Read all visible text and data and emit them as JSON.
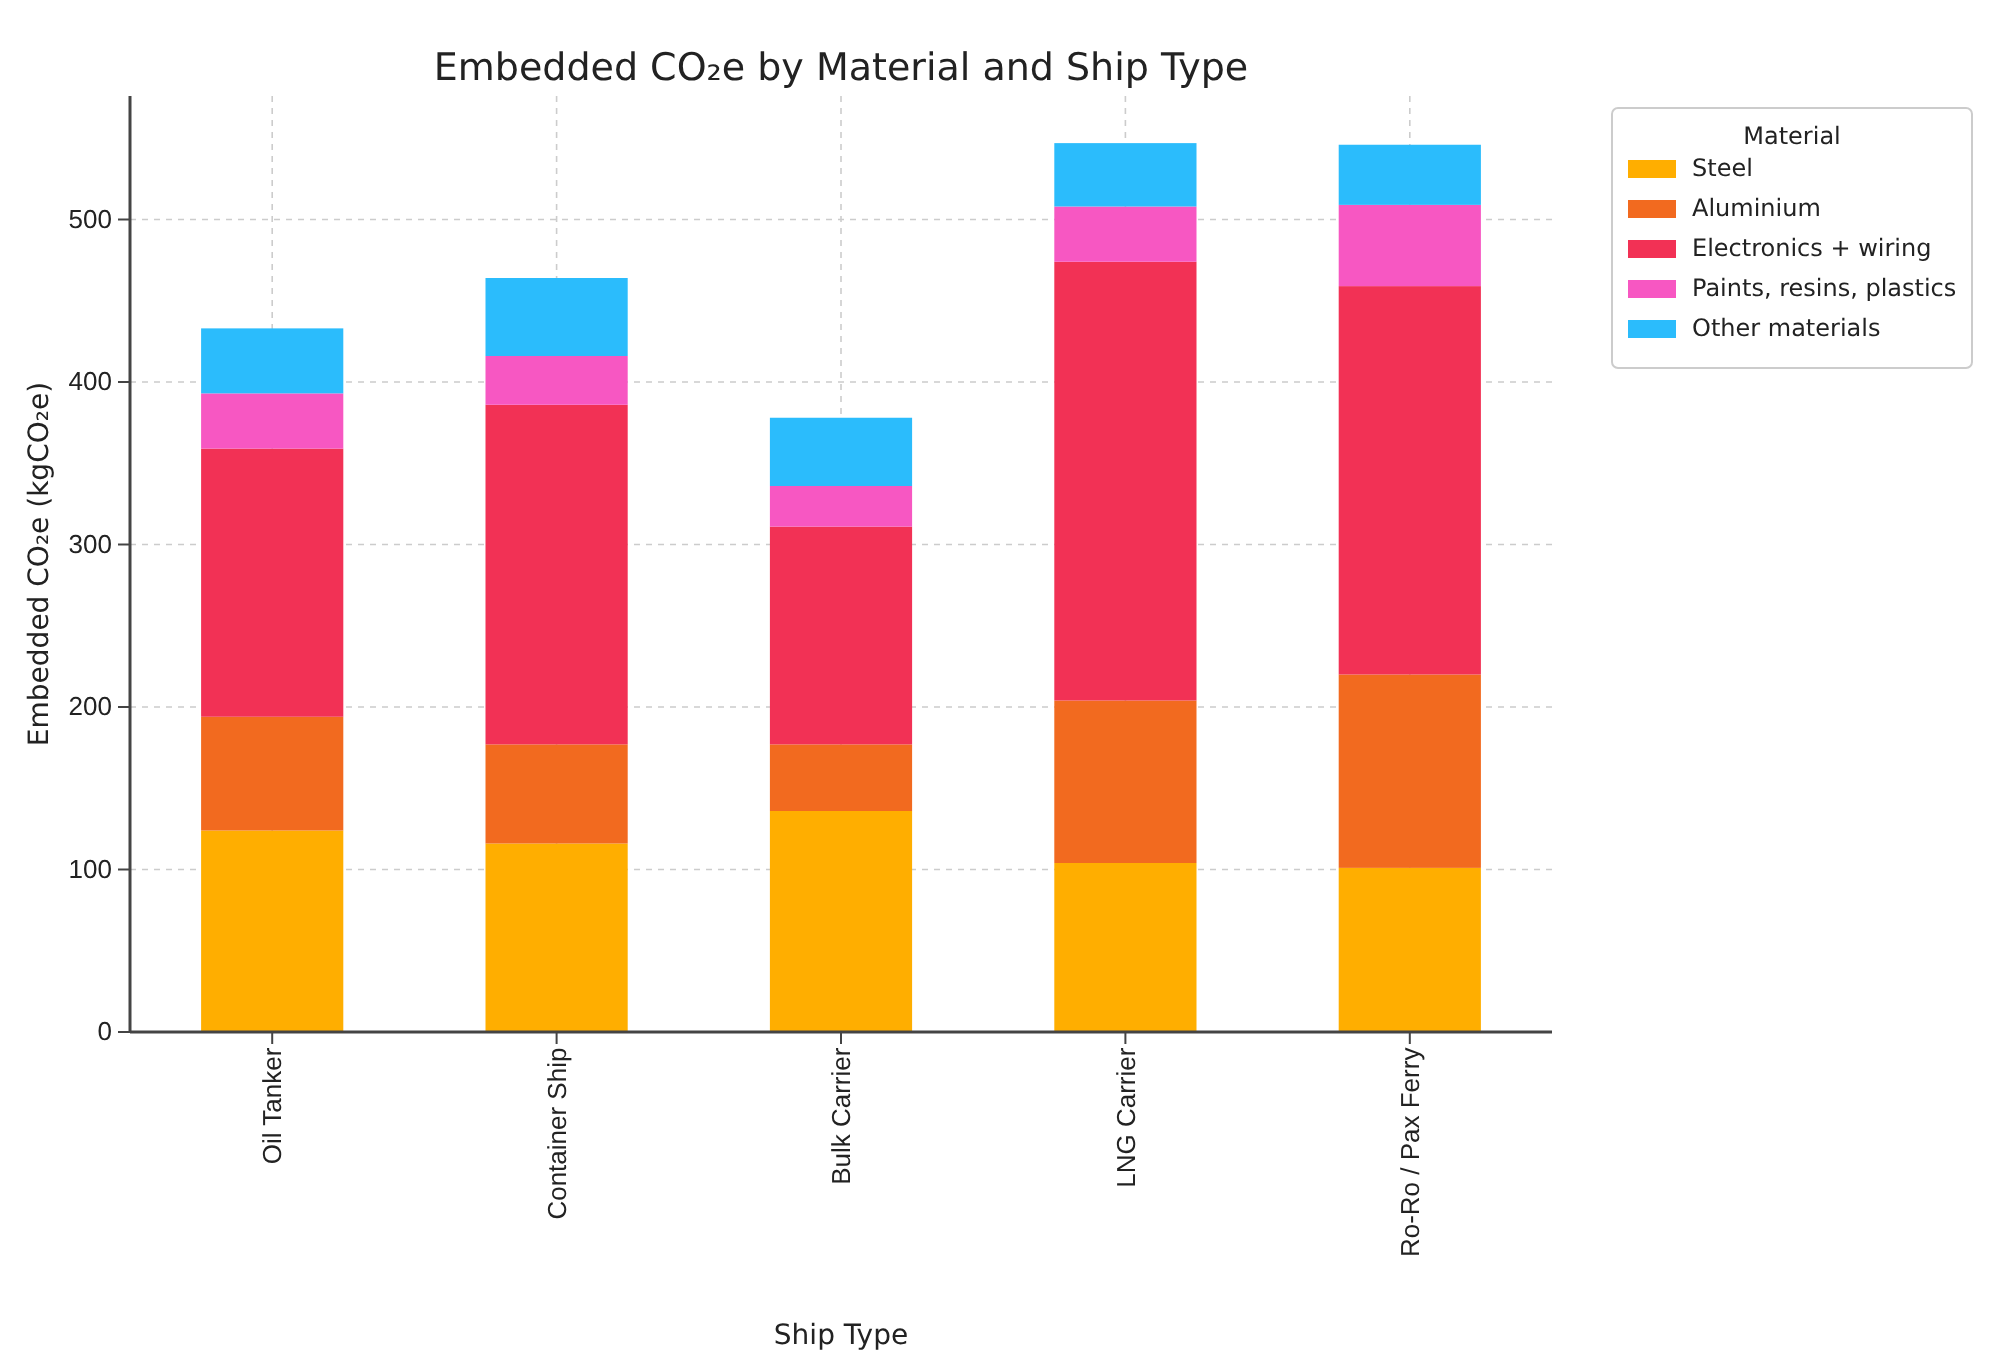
{
  "chart_data": {
    "type": "bar",
    "stacked": true,
    "title": "Embedded CO₂e by Material and Ship Type",
    "xlabel": "Ship Type",
    "ylabel": "Embedded CO₂e (kgCO₂e)",
    "legend_title": "Material",
    "legend": "top right",
    "grid": true,
    "categories": [
      "Oil Tanker",
      "Container Ship",
      "Bulk Carrier",
      "LNG Carrier",
      "Ro-Ro / Pax Ferry"
    ],
    "ylim": [
      0,
      576
    ],
    "yticks": [
      0,
      100,
      200,
      300,
      400,
      500
    ],
    "series": [
      {
        "name": "Steel",
        "color": "#ffae00",
        "values": [
          124,
          116,
          136,
          104,
          101
        ]
      },
      {
        "name": "Aluminium",
        "color": "#f26a1f",
        "values": [
          70,
          61,
          41,
          100,
          119
        ]
      },
      {
        "name": "Electronics + wiring",
        "color": "#f23155",
        "values": [
          165,
          209,
          134,
          270,
          239
        ]
      },
      {
        "name": "Paints, resins, plastics",
        "color": "#f757c2",
        "values": [
          34,
          30,
          25,
          34,
          50
        ]
      },
      {
        "name": "Other materials",
        "color": "#2bbcfc",
        "values": [
          40,
          48,
          42,
          39,
          37
        ]
      }
    ]
  }
}
